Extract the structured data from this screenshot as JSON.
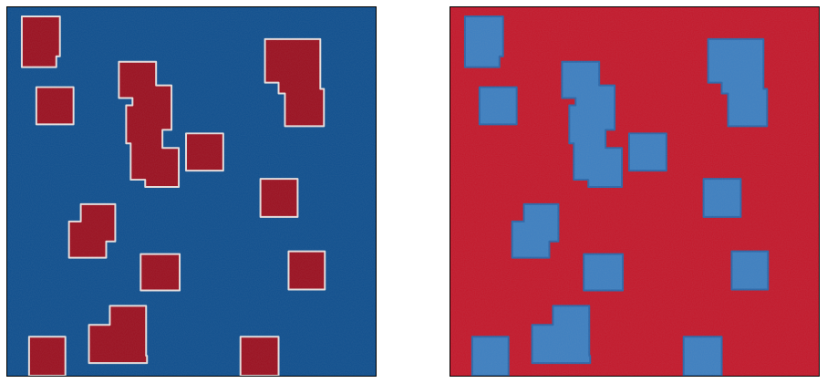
{
  "figure": {
    "panels": [
      {
        "id": "left",
        "background_color": "#0f4f8e",
        "shape_color": "#9b1020",
        "outline_color": "#e6dede",
        "shapes": [
          {
            "id": "L1"
          },
          {
            "id": "L2"
          },
          {
            "id": "L3"
          },
          {
            "id": "L4"
          },
          {
            "id": "L5"
          },
          {
            "id": "L6"
          },
          {
            "id": "L7"
          },
          {
            "id": "L8"
          },
          {
            "id": "L9"
          },
          {
            "id": "L10"
          },
          {
            "id": "L11"
          },
          {
            "id": "L12"
          },
          {
            "id": "L13"
          },
          {
            "id": "L14"
          },
          {
            "id": "L15"
          }
        ]
      },
      {
        "id": "right",
        "background_color": "#c3182b",
        "shape_color": "#3d7fc0",
        "outline_color": "#2b66a8",
        "shapes": [
          {
            "id": "R1"
          },
          {
            "id": "R2"
          },
          {
            "id": "R3"
          },
          {
            "id": "R4"
          },
          {
            "id": "R5"
          },
          {
            "id": "R6"
          },
          {
            "id": "R7"
          },
          {
            "id": "R8"
          },
          {
            "id": "R9"
          },
          {
            "id": "R10"
          },
          {
            "id": "R11"
          },
          {
            "id": "R12"
          },
          {
            "id": "R13"
          },
          {
            "id": "R14"
          },
          {
            "id": "R15"
          }
        ]
      }
    ]
  }
}
